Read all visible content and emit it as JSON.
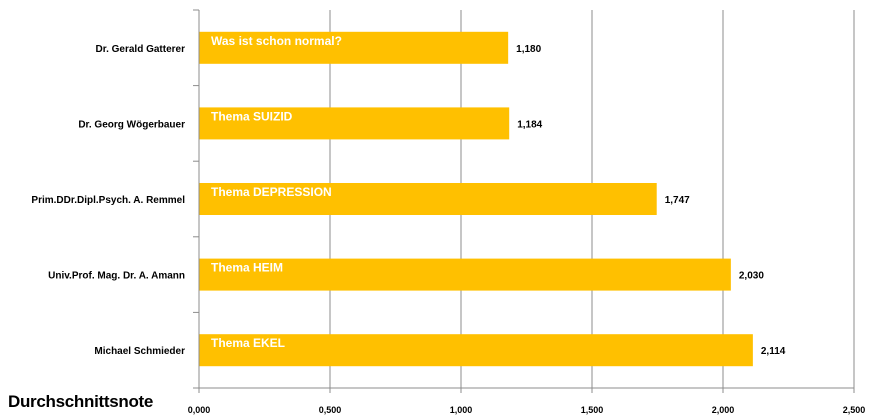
{
  "chart_data": {
    "type": "bar",
    "orientation": "horizontal",
    "categories": [
      "Dr. Gerald  Gatterer",
      "Dr. Georg Wögerbauer",
      "Prim.DDr.Dipl.Psych.  A. Remmel",
      "Univ.Prof. Mag. Dr. A. Amann",
      "Michael Schmieder"
    ],
    "bar_labels": [
      "Was ist schon normal?",
      "Thema SUIZID",
      "Thema DEPRESSION",
      "Thema HEIM",
      "Thema EKEL"
    ],
    "values": [
      1.18,
      1.184,
      1.747,
      2.03,
      2.114
    ],
    "value_labels": [
      "1,180",
      "1,184",
      "1,747",
      "2,030",
      "2,114"
    ],
    "xlim": [
      0,
      2.5
    ],
    "xticks": [
      "0,000",
      "0,500",
      "1,000",
      "1,500",
      "2,000",
      "2,500"
    ],
    "xtick_values": [
      0,
      0.5,
      1.0,
      1.5,
      2.0,
      2.5
    ],
    "title": "",
    "xlabel": "Durchschnittsnote",
    "ylabel": "",
    "grid": "vertical",
    "legend": "none",
    "bar_color": "#FFC000",
    "bar_label_color": "#ffffff"
  }
}
